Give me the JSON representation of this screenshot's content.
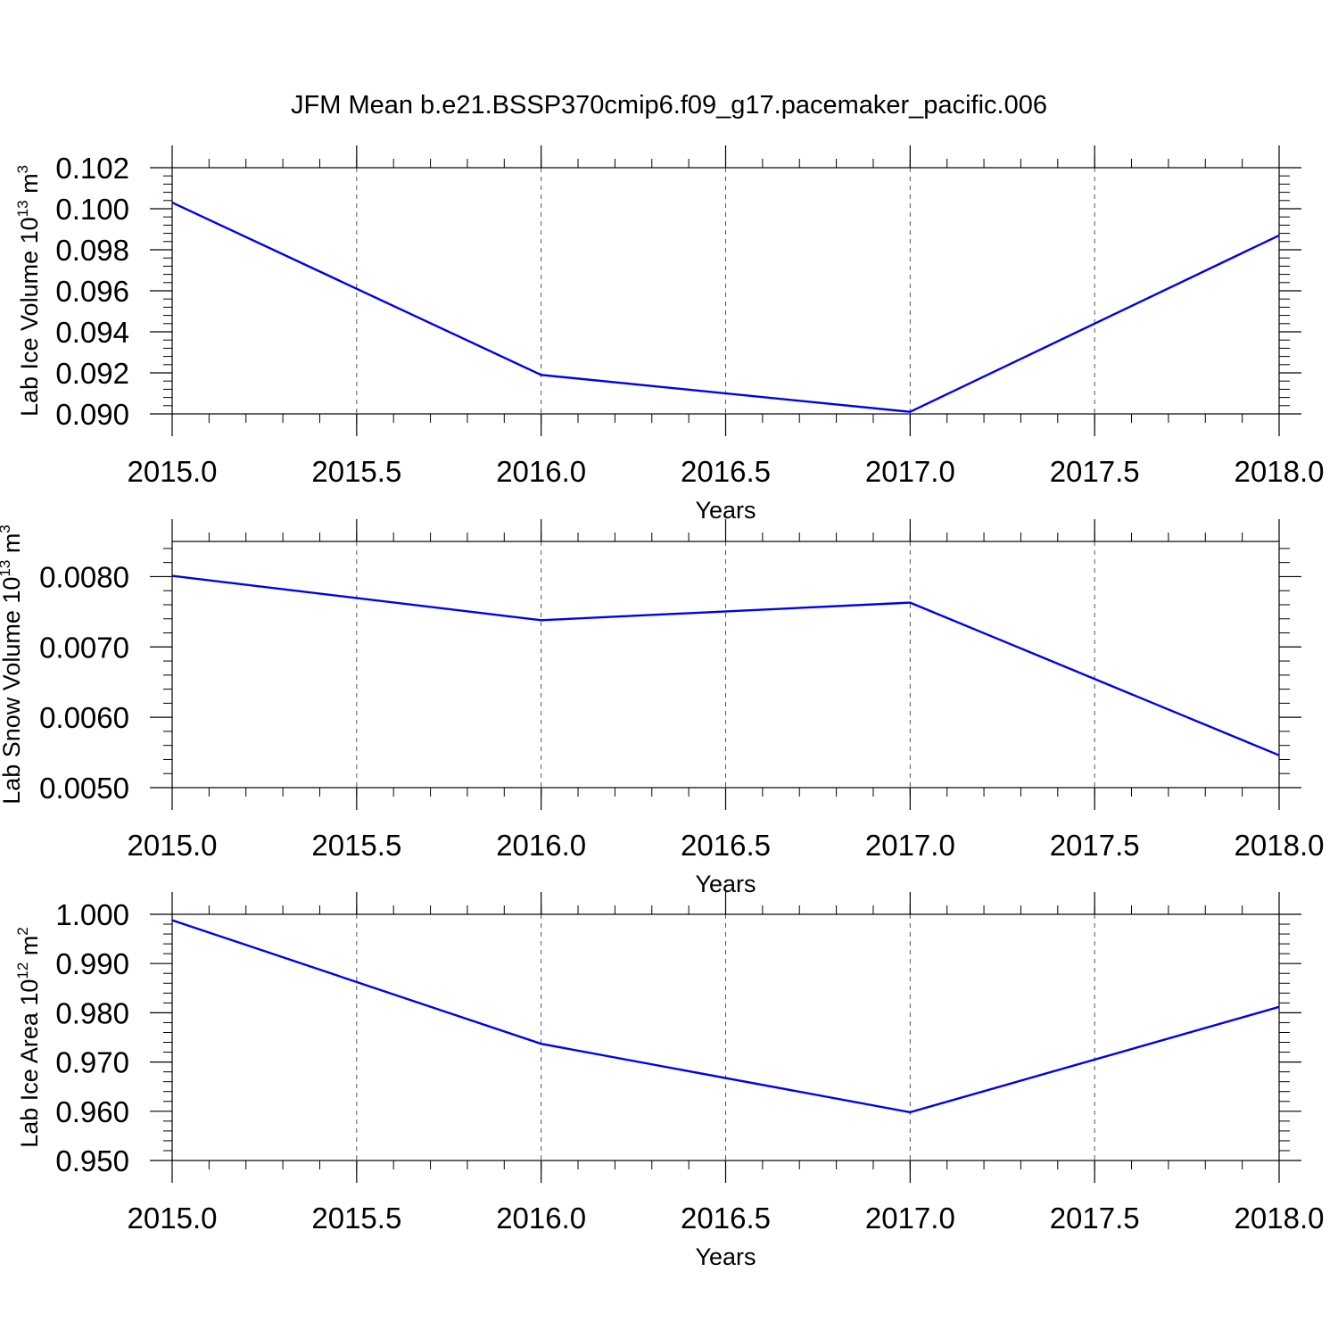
{
  "figure": {
    "title": "JFM Mean b.e21.BSSP370cmip6.f09_g17.pacemaker_pacific.006"
  },
  "chart_data": [
    {
      "type": "line",
      "xlabel": "Years",
      "ylabel": "Lab Ice Volume 10",
      "ylabel_exp": "13",
      "ylabel_unit": "m",
      "ylabel_unit_exp": "3",
      "xlim": [
        2015.0,
        2018.0
      ],
      "ylim": [
        0.09,
        0.102
      ],
      "x_ticks": [
        2015.0,
        2015.5,
        2016.0,
        2016.5,
        2017.0,
        2017.5,
        2018.0
      ],
      "x_tick_labels": [
        "2015.0",
        "2015.5",
        "2016.0",
        "2016.5",
        "2017.0",
        "2017.5",
        "2018.0"
      ],
      "y_ticks": [
        0.09,
        0.092,
        0.094,
        0.096,
        0.098,
        0.1,
        0.102
      ],
      "y_tick_labels": [
        "0.090",
        "0.092",
        "0.094",
        "0.096",
        "0.098",
        "0.100",
        "0.102"
      ],
      "grid": "vertical dashed at major x ticks",
      "x": [
        2015,
        2016,
        2017,
        2018
      ],
      "series": [
        {
          "color": "#0000f0",
          "values": [
            0.1003,
            0.0919,
            0.0901,
            0.0987
          ]
        }
      ]
    },
    {
      "type": "line",
      "xlabel": "Years",
      "ylabel": "Lab Snow Volume 10",
      "ylabel_exp": "13",
      "ylabel_unit": "m",
      "ylabel_unit_exp": "3",
      "xlim": [
        2015.0,
        2018.0
      ],
      "ylim": [
        0.005,
        0.0085
      ],
      "x_ticks": [
        2015.0,
        2015.5,
        2016.0,
        2016.5,
        2017.0,
        2017.5,
        2018.0
      ],
      "x_tick_labels": [
        "2015.0",
        "2015.5",
        "2016.0",
        "2016.5",
        "2017.0",
        "2017.5",
        "2018.0"
      ],
      "y_ticks": [
        0.005,
        0.006,
        0.007,
        0.008
      ],
      "y_tick_labels": [
        "0.0050",
        "0.0060",
        "0.0070",
        "0.0080"
      ],
      "grid": "vertical dashed at major x ticks",
      "x": [
        2015,
        2016,
        2017,
        2018
      ],
      "series": [
        {
          "color": "#0000f0",
          "values": [
            0.00801,
            0.00738,
            0.00763,
            0.00546
          ]
        }
      ]
    },
    {
      "type": "line",
      "xlabel": "Years",
      "ylabel": "Lab Ice Area 10",
      "ylabel_exp": "12",
      "ylabel_unit": "m",
      "ylabel_unit_exp": "2",
      "xlim": [
        2015.0,
        2018.0
      ],
      "ylim": [
        0.95,
        1.0
      ],
      "x_ticks": [
        2015.0,
        2015.5,
        2016.0,
        2016.5,
        2017.0,
        2017.5,
        2018.0
      ],
      "x_tick_labels": [
        "2015.0",
        "2015.5",
        "2016.0",
        "2016.5",
        "2017.0",
        "2017.5",
        "2018.0"
      ],
      "y_ticks": [
        0.95,
        0.96,
        0.97,
        0.98,
        0.99,
        1.0
      ],
      "y_tick_labels": [
        "0.950",
        "0.960",
        "0.970",
        "0.980",
        "0.990",
        "1.000"
      ],
      "grid": "vertical dashed at major x ticks",
      "x": [
        2015,
        2016,
        2017,
        2018
      ],
      "series": [
        {
          "color": "#0000f0",
          "values": [
            0.9988,
            0.9737,
            0.9598,
            0.9812
          ]
        }
      ]
    }
  ]
}
